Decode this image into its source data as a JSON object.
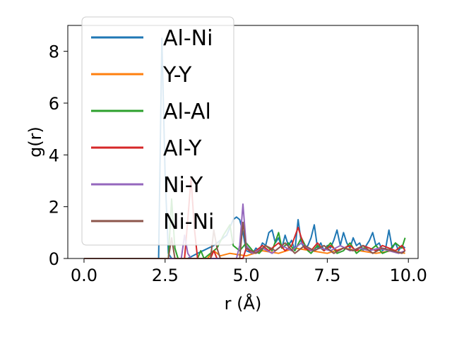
{
  "chart_data": {
    "type": "line",
    "xlabel": "r (Å)",
    "ylabel": "g(r)",
    "xlim": [
      -0.5,
      10.3
    ],
    "ylim": [
      0,
      9
    ],
    "xticks": [
      "0.0",
      "2.5",
      "5.0",
      "7.5",
      "10.0"
    ],
    "xtick_values": [
      0,
      2.5,
      5.0,
      7.5,
      10.0
    ],
    "yticks": [
      "0",
      "2",
      "4",
      "6",
      "8"
    ],
    "ytick_values": [
      0,
      2,
      4,
      6,
      8
    ],
    "grid": false,
    "legend_position": "upper-left",
    "series": [
      {
        "name": "Al-Ni",
        "color": "#1f77b4",
        "points": [
          [
            0,
            0
          ],
          [
            2.2,
            0
          ],
          [
            2.3,
            0
          ],
          [
            2.4,
            8.5
          ],
          [
            2.5,
            3.2
          ],
          [
            2.6,
            0.2
          ],
          [
            2.7,
            0
          ],
          [
            3.2,
            0
          ],
          [
            3.5,
            0.2
          ],
          [
            4.0,
            0.5
          ],
          [
            4.4,
            0.9
          ],
          [
            4.6,
            1.5
          ],
          [
            4.7,
            1.6
          ],
          [
            4.8,
            1.5
          ],
          [
            4.9,
            1.0
          ],
          [
            5.0,
            0.3
          ],
          [
            5.2,
            0.2
          ],
          [
            5.3,
            0.4
          ],
          [
            5.4,
            0.3
          ],
          [
            5.5,
            0.6
          ],
          [
            5.6,
            0.5
          ],
          [
            5.7,
            1.0
          ],
          [
            5.8,
            1.1
          ],
          [
            5.9,
            0.6
          ],
          [
            6.0,
            0.8
          ],
          [
            6.1,
            0.4
          ],
          [
            6.2,
            0.9
          ],
          [
            6.3,
            0.5
          ],
          [
            6.4,
            0.7
          ],
          [
            6.5,
            0.3
          ],
          [
            6.6,
            1.5
          ],
          [
            6.7,
            0.6
          ],
          [
            6.8,
            0.4
          ],
          [
            6.9,
            0.5
          ],
          [
            7.0,
            0.8
          ],
          [
            7.1,
            1.3
          ],
          [
            7.2,
            0.4
          ],
          [
            7.3,
            0.6
          ],
          [
            7.4,
            0.3
          ],
          [
            7.5,
            0.5
          ],
          [
            7.6,
            0.4
          ],
          [
            7.7,
            0.7
          ],
          [
            7.8,
            1.1
          ],
          [
            7.9,
            0.5
          ],
          [
            8.0,
            1.0
          ],
          [
            8.1,
            0.6
          ],
          [
            8.2,
            0.4
          ],
          [
            8.3,
            0.8
          ],
          [
            8.4,
            0.5
          ],
          [
            8.5,
            0.6
          ],
          [
            8.6,
            0.3
          ],
          [
            8.7,
            0.5
          ],
          [
            8.8,
            0.7
          ],
          [
            8.9,
            1.0
          ],
          [
            9.0,
            0.5
          ],
          [
            9.1,
            0.6
          ],
          [
            9.2,
            0.3
          ],
          [
            9.3,
            0.4
          ],
          [
            9.4,
            1.1
          ],
          [
            9.5,
            0.4
          ],
          [
            9.6,
            0.6
          ],
          [
            9.7,
            0.3
          ],
          [
            9.8,
            0.5
          ],
          [
            9.9,
            0.4
          ]
        ]
      },
      {
        "name": "Y-Y",
        "color": "#ff7f0e",
        "points": [
          [
            0,
            0
          ],
          [
            3.8,
            0
          ],
          [
            4.0,
            0.3
          ],
          [
            4.2,
            0.1
          ],
          [
            4.5,
            0.2
          ],
          [
            5.0,
            0.1
          ],
          [
            5.5,
            0.3
          ],
          [
            6.0,
            0.2
          ],
          [
            6.5,
            0.4
          ],
          [
            7.0,
            0.3
          ],
          [
            7.5,
            0.2
          ],
          [
            8.0,
            0.4
          ],
          [
            8.5,
            0.3
          ],
          [
            9.0,
            0.2
          ],
          [
            9.5,
            0.3
          ],
          [
            9.9,
            0.2
          ]
        ]
      },
      {
        "name": "Al-Al",
        "color": "#2ca02c",
        "points": [
          [
            0,
            0
          ],
          [
            2.6,
            0
          ],
          [
            2.7,
            2.3
          ],
          [
            2.8,
            0.4
          ],
          [
            2.9,
            0
          ],
          [
            3.5,
            0
          ],
          [
            3.6,
            0.3
          ],
          [
            3.7,
            0
          ],
          [
            4.1,
            0.4
          ],
          [
            4.3,
            0.9
          ],
          [
            4.5,
            1.3
          ],
          [
            4.6,
            0.5
          ],
          [
            4.8,
            0.3
          ],
          [
            5.0,
            0.6
          ],
          [
            5.2,
            0.3
          ],
          [
            5.4,
            0.2
          ],
          [
            5.6,
            0.5
          ],
          [
            5.8,
            0.3
          ],
          [
            6.0,
            1.0
          ],
          [
            6.1,
            0.4
          ],
          [
            6.3,
            0.6
          ],
          [
            6.5,
            0.3
          ],
          [
            6.7,
            0.8
          ],
          [
            6.9,
            0.3
          ],
          [
            7.0,
            0.2
          ],
          [
            7.2,
            0.5
          ],
          [
            7.4,
            0.3
          ],
          [
            7.6,
            0.6
          ],
          [
            7.8,
            0.2
          ],
          [
            8.0,
            0.3
          ],
          [
            8.2,
            0.6
          ],
          [
            8.4,
            0.2
          ],
          [
            8.6,
            0.4
          ],
          [
            8.8,
            0.3
          ],
          [
            9.0,
            0.5
          ],
          [
            9.2,
            0.2
          ],
          [
            9.4,
            0.3
          ],
          [
            9.6,
            0.6
          ],
          [
            9.8,
            0.4
          ],
          [
            9.9,
            0.8
          ]
        ]
      },
      {
        "name": "Al-Y",
        "color": "#d62728",
        "points": [
          [
            0,
            0
          ],
          [
            3.1,
            0
          ],
          [
            3.2,
            1.5
          ],
          [
            3.3,
            3.1
          ],
          [
            3.4,
            1.2
          ],
          [
            3.5,
            0
          ],
          [
            3.9,
            0
          ],
          [
            4.0,
            0.3
          ],
          [
            4.1,
            0
          ],
          [
            4.9,
            0
          ],
          [
            5.0,
            0.4
          ],
          [
            5.2,
            0.2
          ],
          [
            5.5,
            0.5
          ],
          [
            5.7,
            0.3
          ],
          [
            6.0,
            0.6
          ],
          [
            6.2,
            0.3
          ],
          [
            6.4,
            0.5
          ],
          [
            6.6,
            1.2
          ],
          [
            6.8,
            0.4
          ],
          [
            7.0,
            0.3
          ],
          [
            7.2,
            0.6
          ],
          [
            7.4,
            0.3
          ],
          [
            7.6,
            0.5
          ],
          [
            7.8,
            0.3
          ],
          [
            8.0,
            0.4
          ],
          [
            8.2,
            0.5
          ],
          [
            8.4,
            0.3
          ],
          [
            8.6,
            0.5
          ],
          [
            8.8,
            0.4
          ],
          [
            9.0,
            0.3
          ],
          [
            9.2,
            0.5
          ],
          [
            9.4,
            0.4
          ],
          [
            9.6,
            0.3
          ],
          [
            9.8,
            0.5
          ],
          [
            9.9,
            0.3
          ]
        ]
      },
      {
        "name": "Ni-Y",
        "color": "#9467bd",
        "points": [
          [
            0,
            0
          ],
          [
            3.0,
            0
          ],
          [
            3.1,
            0.9
          ],
          [
            3.2,
            0.2
          ],
          [
            3.3,
            0
          ],
          [
            4.7,
            0
          ],
          [
            4.8,
            0.5
          ],
          [
            4.9,
            2.1
          ],
          [
            5.0,
            0.5
          ],
          [
            5.2,
            0.2
          ],
          [
            5.5,
            0.4
          ],
          [
            5.8,
            0.2
          ],
          [
            6.1,
            0.5
          ],
          [
            6.4,
            0.3
          ],
          [
            6.7,
            0.6
          ],
          [
            7.0,
            0.3
          ],
          [
            7.3,
            0.4
          ],
          [
            7.6,
            0.3
          ],
          [
            7.9,
            0.5
          ],
          [
            8.2,
            0.3
          ],
          [
            8.5,
            0.4
          ],
          [
            8.8,
            0.3
          ],
          [
            9.1,
            0.4
          ],
          [
            9.4,
            0.3
          ],
          [
            9.7,
            0.2
          ],
          [
            9.9,
            0.3
          ]
        ]
      },
      {
        "name": "Ni-Ni",
        "color": "#8c564b",
        "points": [
          [
            0,
            0
          ],
          [
            2.6,
            0
          ],
          [
            2.7,
            0.8
          ],
          [
            2.8,
            0
          ],
          [
            3.9,
            0
          ],
          [
            4.0,
            1.1
          ],
          [
            4.1,
            0.4
          ],
          [
            4.2,
            0
          ],
          [
            4.8,
            0
          ],
          [
            4.9,
            1.4
          ],
          [
            5.0,
            0.4
          ],
          [
            5.3,
            0.2
          ],
          [
            5.6,
            0.5
          ],
          [
            5.9,
            0.3
          ],
          [
            6.2,
            0.6
          ],
          [
            6.5,
            0.2
          ],
          [
            6.8,
            0.5
          ],
          [
            7.1,
            0.3
          ],
          [
            7.4,
            0.5
          ],
          [
            7.7,
            0.2
          ],
          [
            8.0,
            0.4
          ],
          [
            8.3,
            0.3
          ],
          [
            8.6,
            0.5
          ],
          [
            8.9,
            0.2
          ],
          [
            9.2,
            0.4
          ],
          [
            9.5,
            0.3
          ],
          [
            9.8,
            0.2
          ],
          [
            9.9,
            0.3
          ]
        ]
      }
    ]
  }
}
